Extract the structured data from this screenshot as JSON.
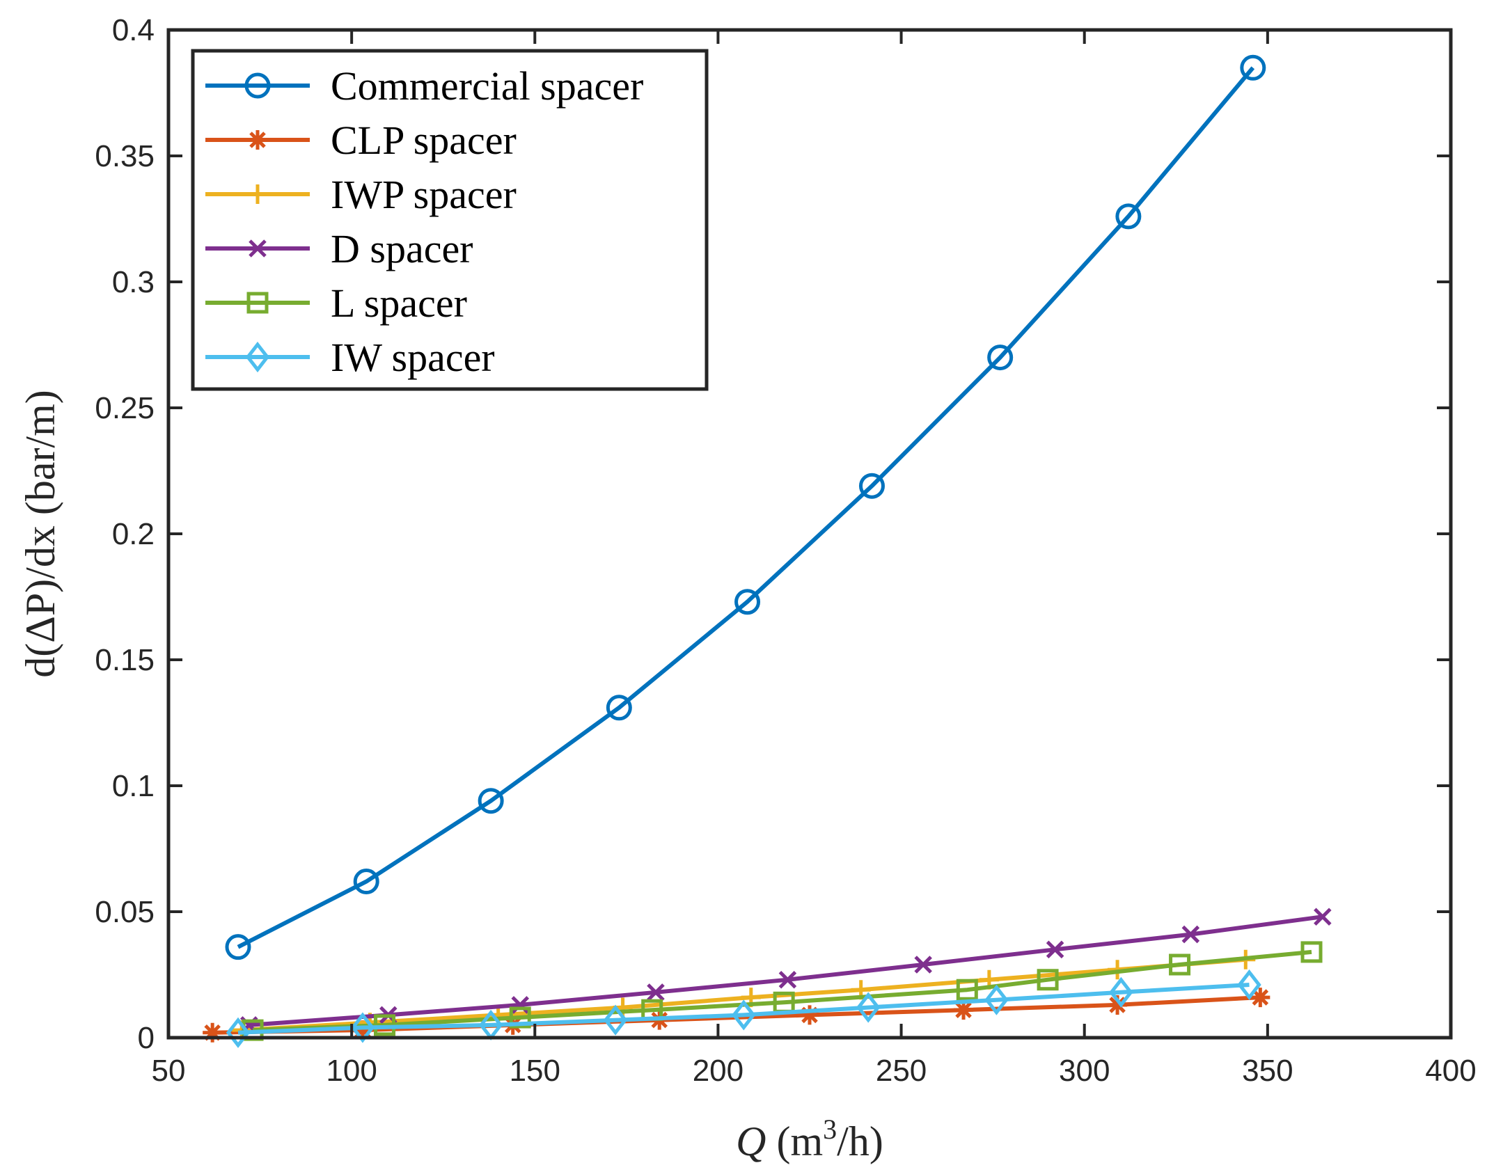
{
  "chart_data": {
    "type": "line",
    "title": "",
    "xlabel": {
      "var": "Q",
      "unit_open": "(m",
      "unit_sup": "3",
      "unit_close": "/h)"
    },
    "ylabel": "d(ΔP)/dx (bar/m)",
    "xlim": [
      50,
      400
    ],
    "ylim": [
      0,
      0.4
    ],
    "xticks": [
      50,
      100,
      150,
      200,
      250,
      300,
      350,
      400
    ],
    "xtick_labels": [
      "50",
      "100",
      "150",
      "200",
      "250",
      "300",
      "350",
      "400"
    ],
    "yticks": [
      0,
      0.05,
      0.1,
      0.15,
      0.2,
      0.25,
      0.3,
      0.35,
      0.4
    ],
    "ytick_labels": [
      "0",
      "0.05",
      "0.1",
      "0.15",
      "0.2",
      "0.25",
      "0.3",
      "0.35",
      "0.4"
    ],
    "grid": false,
    "legend_position": "top-left",
    "series": [
      {
        "name": "Commercial spacer",
        "color": "#0072BD",
        "marker": "circle",
        "x": [
          69,
          104,
          138,
          173,
          208,
          242,
          277,
          312,
          346
        ],
        "y": [
          0.036,
          0.062,
          0.094,
          0.131,
          0.173,
          0.219,
          0.27,
          0.326,
          0.385
        ]
      },
      {
        "name": "CLP spacer",
        "color": "#D95319",
        "marker": "asterisk",
        "x": [
          62,
          103,
          144,
          184,
          225,
          267,
          309,
          348
        ],
        "y": [
          0.002,
          0.003,
          0.005,
          0.007,
          0.009,
          0.011,
          0.013,
          0.016
        ]
      },
      {
        "name": "IWP spacer",
        "color": "#EDB120",
        "marker": "plus",
        "x": [
          70,
          105,
          140,
          174,
          209,
          239,
          274,
          309,
          344
        ],
        "y": [
          0.003,
          0.006,
          0.009,
          0.012,
          0.016,
          0.019,
          0.023,
          0.027,
          0.031
        ]
      },
      {
        "name": "D spacer",
        "color": "#7E2F8E",
        "marker": "x",
        "x": [
          72,
          110,
          146,
          183,
          219,
          256,
          292,
          329,
          365
        ],
        "y": [
          0.005,
          0.009,
          0.013,
          0.018,
          0.023,
          0.029,
          0.035,
          0.041,
          0.048
        ]
      },
      {
        "name": "L spacer",
        "color": "#77AC30",
        "marker": "square",
        "x": [
          73,
          109,
          146,
          182,
          218,
          268,
          290,
          326,
          362
        ],
        "y": [
          0.003,
          0.005,
          0.008,
          0.011,
          0.014,
          0.019,
          0.023,
          0.029,
          0.034
        ]
      },
      {
        "name": "IW spacer",
        "color": "#4DBEEE",
        "marker": "diamond",
        "x": [
          69,
          103,
          138,
          172,
          207,
          241,
          276,
          310,
          345
        ],
        "y": [
          0.002,
          0.004,
          0.005,
          0.007,
          0.009,
          0.012,
          0.015,
          0.018,
          0.021
        ]
      }
    ]
  }
}
